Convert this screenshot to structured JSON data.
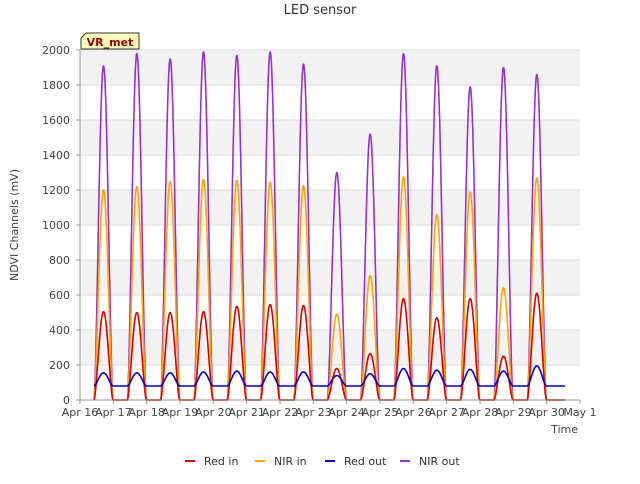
{
  "chart_data": {
    "type": "line",
    "title": "LED sensor",
    "xlabel": "Time",
    "ylabel": "NDVI Channels (mV)",
    "badge": "VR_met",
    "ylim": [
      0,
      2000
    ],
    "yticks": [
      0,
      200,
      400,
      600,
      800,
      1000,
      1200,
      1400,
      1600,
      1800,
      2000
    ],
    "xlim": [
      0,
      15
    ],
    "xtick_labels": [
      "Apr 16",
      "Apr 17",
      "Apr 18",
      "Apr 19",
      "Apr 20",
      "Apr 21",
      "Apr 22",
      "Apr 23",
      "Apr 24",
      "Apr 25",
      "Apr 26",
      "Apr 27",
      "Apr 28",
      "Apr 29",
      "Apr 30",
      "May 1"
    ],
    "grid": true,
    "legend_position": "bottom",
    "days": [
      "Apr 16",
      "Apr 17",
      "Apr 18",
      "Apr 19",
      "Apr 20",
      "Apr 21",
      "Apr 22",
      "Apr 23",
      "Apr 24",
      "Apr 25",
      "Apr 26",
      "Apr 27",
      "Apr 28",
      "Apr 29"
    ],
    "series": [
      {
        "name": "Red in",
        "color": "#dd0000",
        "baseline": 0,
        "daily_peaks": [
          505,
          500,
          500,
          505,
          535,
          545,
          540,
          180,
          265,
          580,
          470,
          580,
          250,
          610
        ]
      },
      {
        "name": "NIR in",
        "color": "#ffa500",
        "baseline": 0,
        "daily_peaks": [
          1200,
          1220,
          1250,
          1260,
          1255,
          1245,
          1225,
          490,
          710,
          1275,
          1060,
          1190,
          640,
          1270
        ]
      },
      {
        "name": "Red out",
        "color": "#0000cc",
        "baseline": 80,
        "daily_peaks": [
          155,
          155,
          155,
          160,
          165,
          160,
          160,
          140,
          150,
          180,
          170,
          175,
          165,
          195
        ]
      },
      {
        "name": "NIR out",
        "color": "#9932cc",
        "baseline": 0,
        "daily_peaks": [
          1910,
          1980,
          1950,
          1990,
          1970,
          1990,
          1920,
          1300,
          1520,
          1980,
          1910,
          1790,
          1900,
          1860
        ]
      }
    ]
  }
}
